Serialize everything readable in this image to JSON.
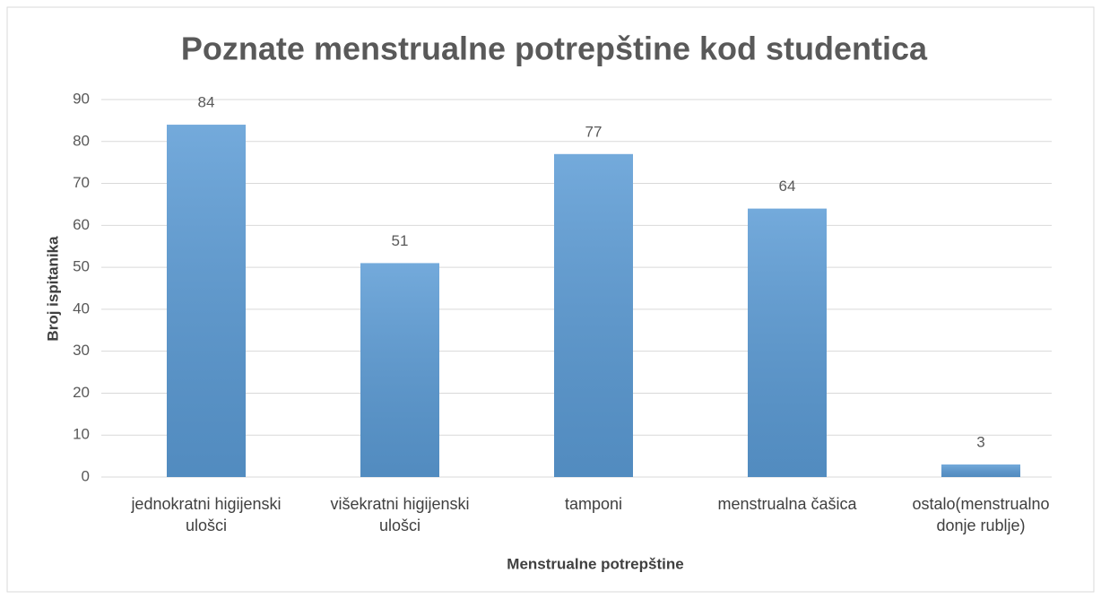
{
  "chart_data": {
    "type": "bar",
    "title": "Poznate menstrualne potrepštine kod studentica",
    "categories": [
      "jednokratni higijenski ulošci",
      "višekratni higijenski ulošci",
      "tamponi",
      "menstrualna čašica",
      "ostalo(menstrualno donje rublje)"
    ],
    "values": [
      84,
      51,
      77,
      64,
      3
    ],
    "color": "#5b9bd5",
    "x_label": "Menstrualne potrepštine",
    "y_label": "Broj ispitanika",
    "ylim": [
      0,
      90
    ],
    "yticks": [
      0,
      10,
      20,
      30,
      40,
      50,
      60,
      70,
      80,
      90
    ],
    "grid": true
  }
}
